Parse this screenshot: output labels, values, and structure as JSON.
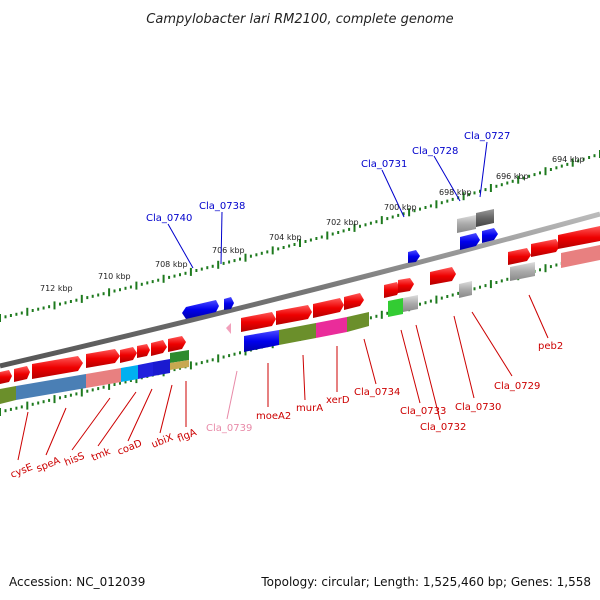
{
  "title": "Campylobacter lari RM2100, complete genome",
  "footer": {
    "accession": "Accession: NC_012039",
    "topology": "Topology: circular; Length: 1,525,460 bp; Genes: 1,558"
  },
  "ticks": [
    "694 kbp",
    "696 kbp",
    "698 kbp",
    "700 kbp",
    "702 kbp",
    "704 kbp",
    "706 kbp",
    "708 kbp",
    "710 kbp",
    "712 kbp"
  ],
  "colors": {
    "backbone": "#8a8a8a",
    "tick": "#1e7a1e",
    "label_blue": "#0000cc",
    "label_red": "#cc0000",
    "label_pink": "#e88aa8"
  },
  "labels_top": [
    "Cla_0740",
    "Cla_0738",
    "Cla_0731",
    "Cla_0728",
    "Cla_0727"
  ],
  "labels_bottom": [
    "cysE",
    "speA",
    "hisS",
    "tmk",
    "coaD",
    "ubiX",
    "flgA",
    "Cla_0739",
    "moeA2",
    "murA",
    "xerD",
    "Cla_0734",
    "Cla_0733",
    "Cla_0732",
    "Cla_0730",
    "Cla_0729",
    "peb2"
  ]
}
